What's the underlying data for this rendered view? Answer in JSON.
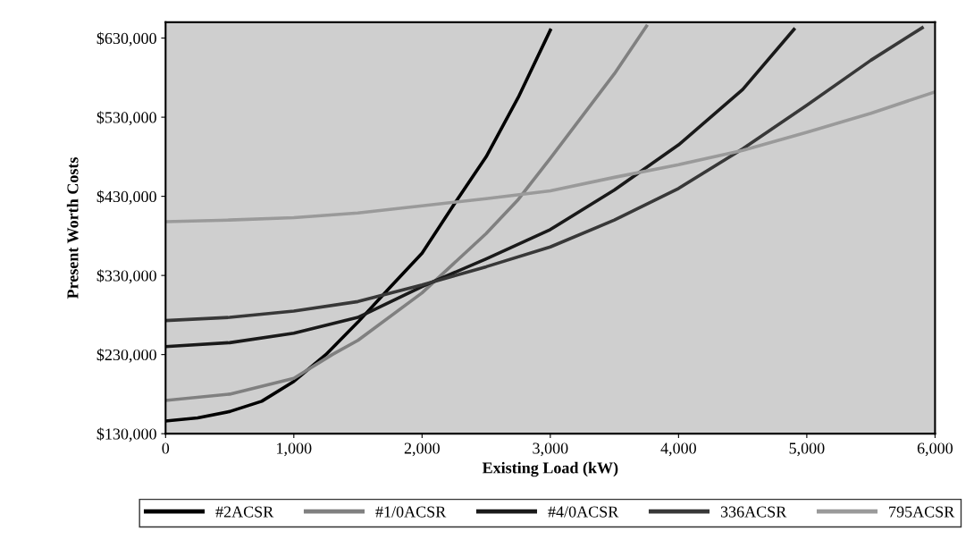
{
  "chart_data": {
    "type": "line",
    "xlabel": "Existing Load (kW)",
    "ylabel": "Present Worth Costs",
    "xlim": [
      0,
      6000
    ],
    "ylim": [
      130000,
      650000
    ],
    "xticks": [
      0,
      {
        "value": 1000,
        "label": "1,000"
      },
      {
        "value": 2000,
        "label": "2,000"
      },
      {
        "value": 3000,
        "label": "3,000"
      },
      {
        "value": 4000,
        "label": "4,000"
      },
      {
        "value": 5000,
        "label": "5,000"
      },
      {
        "value": 6000,
        "label": "6,000"
      }
    ],
    "yticks": [
      {
        "value": 130000,
        "label": "$130,000"
      },
      {
        "value": 230000,
        "label": "$230,000"
      },
      {
        "value": 330000,
        "label": "$330,000"
      },
      {
        "value": 430000,
        "label": "$430,000"
      },
      {
        "value": 530000,
        "label": "$530,000"
      },
      {
        "value": 630000,
        "label": "$630,000"
      }
    ],
    "grid": false,
    "legend": "bottom",
    "marker": "none",
    "line_style": "solid",
    "series": [
      {
        "name": "#2ACSR",
        "color": "#000000",
        "x": [
          0,
          250,
          500,
          750,
          1000,
          1250,
          1500,
          1750,
          2000,
          2250,
          2500,
          2750,
          3000
        ],
        "values": [
          146000,
          150000,
          158000,
          171000,
          196000,
          230000,
          271000,
          315000,
          358000,
          420000,
          480000,
          555000,
          640000
        ]
      },
      {
        "name": "#1/0ACSR",
        "color": "#808080",
        "x": [
          0,
          500,
          1000,
          1300,
          1500,
          2000,
          2500,
          2750,
          3000,
          3500,
          3750
        ],
        "values": [
          172000,
          180000,
          200000,
          230000,
          248000,
          308000,
          383000,
          426000,
          478000,
          585000,
          645000
        ]
      },
      {
        "name": "#4/0ACSR",
        "color": "#1a1a1a",
        "x": [
          0,
          500,
          1000,
          1500,
          2000,
          2500,
          3000,
          3500,
          4000,
          4500,
          4900
        ],
        "values": [
          240000,
          245000,
          257000,
          277000,
          316000,
          351000,
          388000,
          438000,
          495000,
          565000,
          641000
        ]
      },
      {
        "name": "336ACSR",
        "color": "#383838",
        "x": [
          0,
          500,
          1000,
          1500,
          2000,
          2500,
          3000,
          3500,
          4000,
          4500,
          5000,
          5500,
          5900
        ],
        "values": [
          273000,
          277000,
          285000,
          297000,
          318000,
          341000,
          366000,
          400000,
          440000,
          490000,
          545000,
          602000,
          643000
        ]
      },
      {
        "name": "795ACSR",
        "color": "#9a9a9a",
        "x": [
          0,
          500,
          1000,
          1500,
          2000,
          2500,
          3000,
          3500,
          4000,
          4500,
          5000,
          5500,
          6000
        ],
        "values": [
          398000,
          400000,
          403000,
          409000,
          418000,
          427000,
          437000,
          454000,
          470000,
          488000,
          511000,
          535000,
          562000
        ]
      }
    ]
  }
}
